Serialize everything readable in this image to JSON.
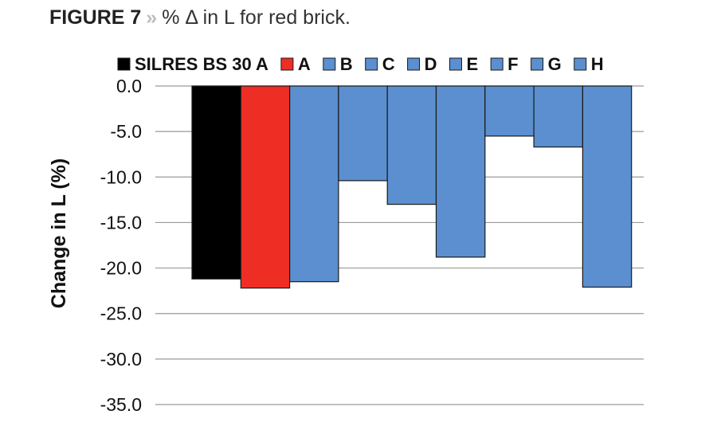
{
  "figure": {
    "number": "FIGURE 7",
    "separator": "»",
    "caption": "% Δ in L for red brick."
  },
  "chart_data": {
    "type": "bar",
    "categories": [
      "SILRES BS 30 A",
      "A",
      "B",
      "C",
      "D",
      "E",
      "F",
      "G",
      "H"
    ],
    "values": [
      -21.2,
      -22.2,
      -21.5,
      -10.4,
      -13.0,
      -18.8,
      -5.5,
      -6.7,
      -22.1
    ],
    "colors": [
      "#000000",
      "#ee2d24",
      "#5b8fcf",
      "#5b8fcf",
      "#5b8fcf",
      "#5b8fcf",
      "#5b8fcf",
      "#5b8fcf",
      "#5b8fcf"
    ],
    "legend": [
      "SILRES BS 30 A",
      "A",
      "B",
      "C",
      "D",
      "E",
      "F",
      "G",
      "H"
    ],
    "legend_position": "top",
    "ylabel": "Change in L (%)",
    "ylim": [
      -35.0,
      0.0
    ],
    "yticks": [
      "0.0",
      "-5.0",
      "-10.0",
      "-15.0",
      "-20.0",
      "-25.0",
      "-30.0",
      "-35.0"
    ],
    "grid": true
  }
}
